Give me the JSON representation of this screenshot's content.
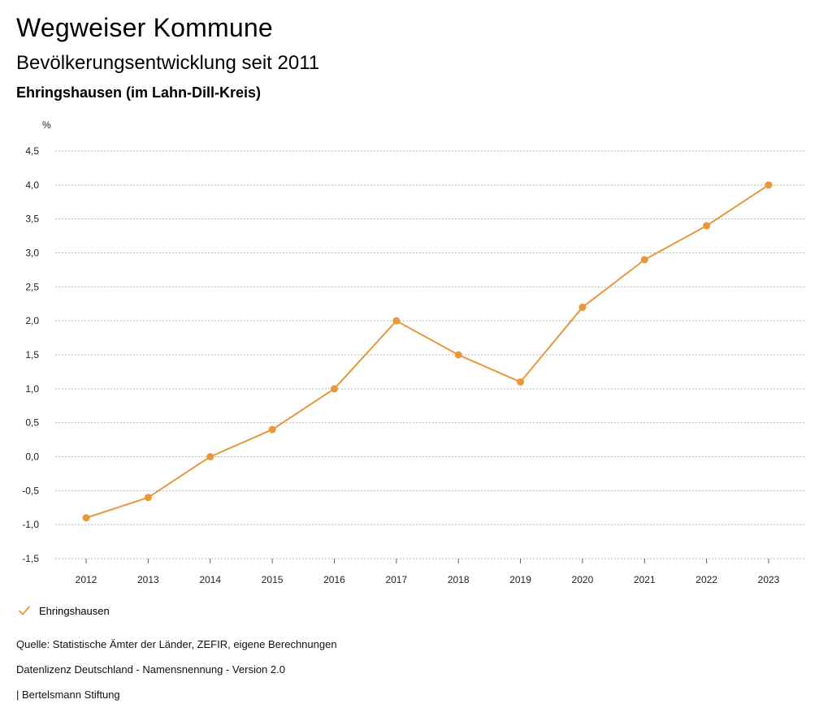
{
  "header": {
    "title": "Wegweiser Kommune",
    "subtitle": "Bevölkerungsentwicklung seit 2011",
    "region": "Ehringshausen (im Lahn-Dill-Kreis)"
  },
  "chart_data": {
    "type": "line",
    "title": "Bevölkerungsentwicklung seit 2011",
    "xlabel": "",
    "ylabel": "%",
    "categories": [
      "2012",
      "2013",
      "2014",
      "2015",
      "2016",
      "2017",
      "2018",
      "2019",
      "2020",
      "2021",
      "2022",
      "2023"
    ],
    "series": [
      {
        "name": "Ehringshausen",
        "color": "#e8973a",
        "values": [
          -0.9,
          -0.6,
          0.0,
          0.4,
          1.0,
          2.0,
          1.5,
          1.1,
          2.2,
          2.9,
          3.4,
          4.0
        ]
      }
    ],
    "ylim": [
      -1.5,
      4.5
    ],
    "yticks": [
      -1.5,
      -1.0,
      -0.5,
      0.0,
      0.5,
      1.0,
      1.5,
      2.0,
      2.5,
      3.0,
      3.5,
      4.0,
      4.5
    ],
    "ytick_labels": [
      "-1,5",
      "-1,0",
      "-0,5",
      "0,0",
      "0,5",
      "1,0",
      "1,5",
      "2,0",
      "2,5",
      "3,0",
      "3,5",
      "4,0",
      "4,5"
    ],
    "grid": true,
    "legend": "bottom-left"
  },
  "legend": {
    "label": "Ehringshausen",
    "icon": "check-icon",
    "color": "#e8973a"
  },
  "footer": {
    "source": "Quelle: Statistische Ämter der Länder, ZEFIR, eigene Berechnungen",
    "license": "Datenlizenz Deutschland - Namensnennung - Version 2.0",
    "publisher": "| Bertelsmann Stiftung"
  }
}
